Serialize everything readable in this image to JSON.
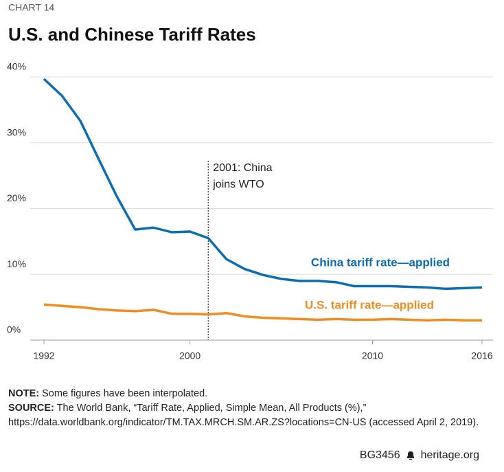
{
  "chart_data": {
    "type": "line",
    "label": "CHART 14",
    "title": "U.S. and Chinese Tariff Rates",
    "x": [
      1992,
      1993,
      1994,
      1995,
      1996,
      1997,
      1998,
      1999,
      2000,
      2001,
      2002,
      2003,
      2004,
      2005,
      2006,
      2007,
      2008,
      2009,
      2010,
      2011,
      2012,
      2013,
      2014,
      2015,
      2016
    ],
    "series": [
      {
        "name": "China tariff rate—applied",
        "color": "#0b6db3",
        "values": [
          39.7,
          37.1,
          33.3,
          27.5,
          21.8,
          16.8,
          17.1,
          16.4,
          16.5,
          15.5,
          12.3,
          10.8,
          9.9,
          9.3,
          9.0,
          9.0,
          8.8,
          8.2,
          8.2,
          8.2,
          8.1,
          8.0,
          7.8,
          7.9,
          8.0
        ]
      },
      {
        "name": "U.S. tariff rate—applied",
        "color": "#f28c1f",
        "values": [
          5.4,
          5.2,
          5.0,
          4.7,
          4.5,
          4.4,
          4.6,
          4.0,
          4.0,
          3.9,
          4.1,
          3.6,
          3.4,
          3.3,
          3.2,
          3.1,
          3.2,
          3.1,
          3.1,
          3.2,
          3.1,
          3.0,
          3.1,
          3.0,
          3.0
        ]
      }
    ],
    "xlim": [
      1992,
      2016
    ],
    "xticks": [
      1992,
      2000,
      2010,
      2016
    ],
    "ylim": [
      0,
      40
    ],
    "yticks": [
      {
        "value": 0,
        "label": "0%"
      },
      {
        "value": 10,
        "label": "10%"
      },
      {
        "value": 20,
        "label": "20%"
      },
      {
        "value": 30,
        "label": "30%"
      },
      {
        "value": 40,
        "label": "40%"
      }
    ],
    "grid": true,
    "annotation": {
      "x": 2001,
      "lines": [
        "2001: China",
        "joins WTO"
      ]
    },
    "note": {
      "label": "NOTE:",
      "text": "Some figures have been interpolated."
    },
    "source": {
      "label": "SOURCE:",
      "text": "The World Bank, “Tariff Rate, Applied, Simple Mean, All Products (%),” https://data.worldbank.org/indicator/TM.TAX.MRCH.SM.AR.ZS?locations=CN-US (accessed April 2, 2019)."
    },
    "footer": {
      "id": "BG3456",
      "site": "heritage.org"
    }
  }
}
